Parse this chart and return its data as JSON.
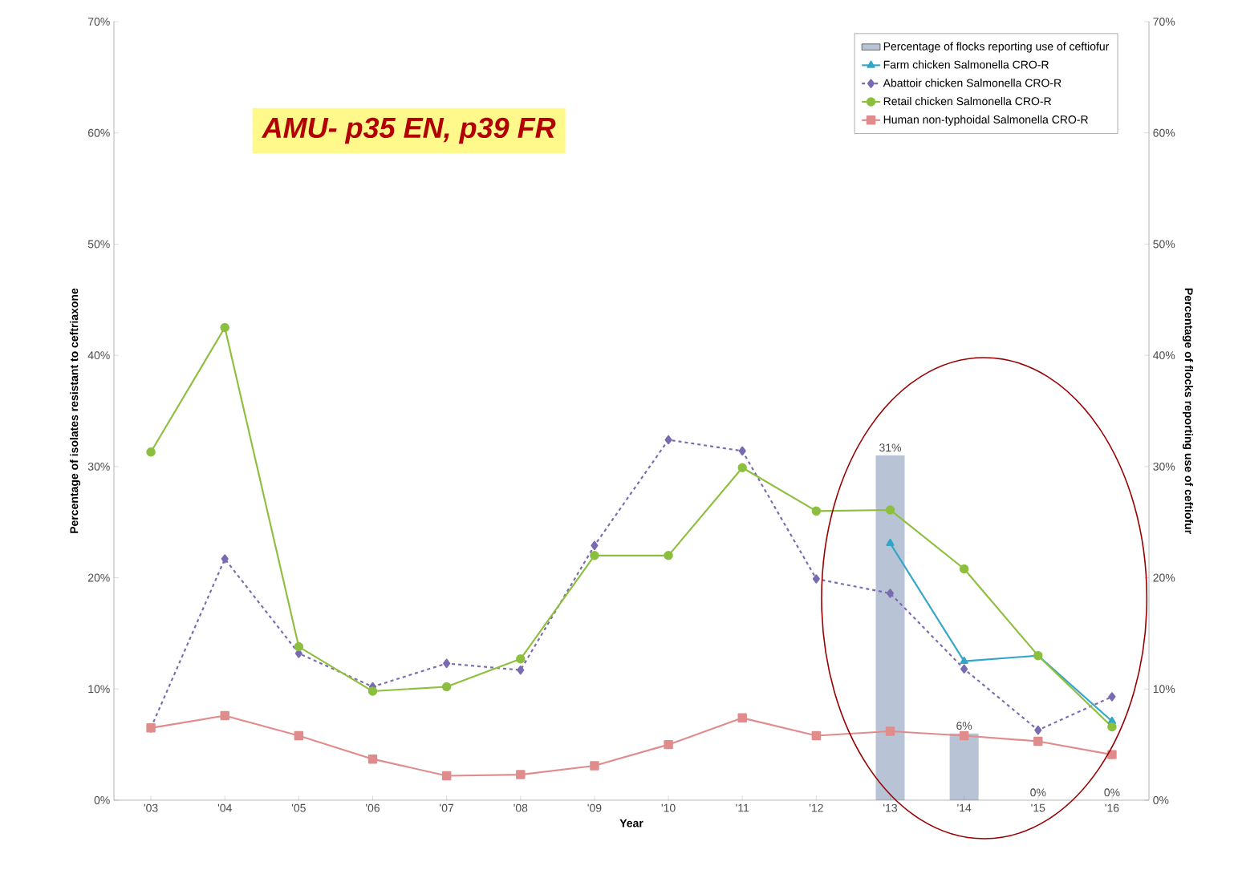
{
  "chart_data": {
    "type": "line",
    "xlabel": "Year",
    "ylabel": "Percentage of isolates resistant to ceftriaxone",
    "y2label": "Percentage of flocks reporting use of ceftiofur",
    "categories": [
      "'03",
      "'04",
      "'05",
      "'06",
      "'07",
      "'08",
      "'09",
      "'10",
      "'11",
      "'12",
      "'13",
      "'14",
      "'15",
      "'16"
    ],
    "series": [
      {
        "name": "Percentage of flocks reporting use of ceftiofur",
        "type": "bar",
        "axis": "y2",
        "color": "#b8c4d6",
        "values": [
          null,
          null,
          null,
          null,
          null,
          null,
          null,
          null,
          null,
          null,
          31,
          6,
          0,
          0
        ],
        "value_labels": [
          null,
          null,
          null,
          null,
          null,
          null,
          null,
          null,
          null,
          null,
          "31%",
          "6%",
          "0%",
          "0%"
        ]
      },
      {
        "name": "Farm chicken Salmonella CRO-R",
        "color": "#33a6c7",
        "marker": "triangle",
        "line_style": "solid",
        "values": [
          null,
          null,
          null,
          null,
          null,
          null,
          null,
          null,
          null,
          null,
          23.1,
          12.5,
          13,
          7.1
        ]
      },
      {
        "name": "Abattoir chicken Salmonella CRO-R",
        "color": "#7a6ab0",
        "marker": "diamond",
        "line_style": "dashed",
        "values": [
          6.5,
          21.7,
          13.2,
          10.2,
          12.3,
          11.7,
          22.9,
          32.4,
          31.4,
          19.9,
          18.6,
          11.8,
          6.3,
          9.3
        ]
      },
      {
        "name": "Retail chicken Salmonella CRO-R",
        "color": "#8dbf3f",
        "marker": "circle",
        "line_style": "solid",
        "values": [
          31.3,
          42.5,
          13.8,
          9.8,
          10.2,
          12.7,
          22,
          22,
          29.9,
          26,
          26.1,
          20.8,
          13,
          6.6
        ]
      },
      {
        "name": "Human non-typhoidal Salmonella CRO-R",
        "color": "#e08c8c",
        "marker": "square",
        "line_style": "solid",
        "values": [
          6.5,
          7.6,
          5.8,
          3.7,
          2.2,
          2.3,
          3.1,
          5,
          7.4,
          5.8,
          6.2,
          5.8,
          5.3,
          4.1
        ]
      }
    ],
    "ylim": [
      0,
      70
    ],
    "yticks": [
      {
        "value": 0,
        "label": "0%"
      },
      {
        "value": 10,
        "label": "10%"
      },
      {
        "value": 20,
        "label": "20%"
      },
      {
        "value": 30,
        "label": "30%"
      },
      {
        "value": 40,
        "label": "40%"
      },
      {
        "value": 50,
        "label": "50%"
      },
      {
        "value": 60,
        "label": "60%"
      },
      {
        "value": 70,
        "label": "70%"
      }
    ],
    "y2lim": [
      0,
      70
    ],
    "y2ticks": [
      {
        "value": 0,
        "label": "0%"
      },
      {
        "value": 10,
        "label": "10%"
      },
      {
        "value": 20,
        "label": "20%"
      },
      {
        "value": 30,
        "label": "30%"
      },
      {
        "value": 40,
        "label": "40%"
      },
      {
        "value": 50,
        "label": "50%"
      },
      {
        "value": 60,
        "label": "60%"
      },
      {
        "value": 70,
        "label": "70%"
      }
    ],
    "legend": "top right",
    "grid": false,
    "annotations": [
      "AMU- p35 EN, p39 FR"
    ]
  }
}
